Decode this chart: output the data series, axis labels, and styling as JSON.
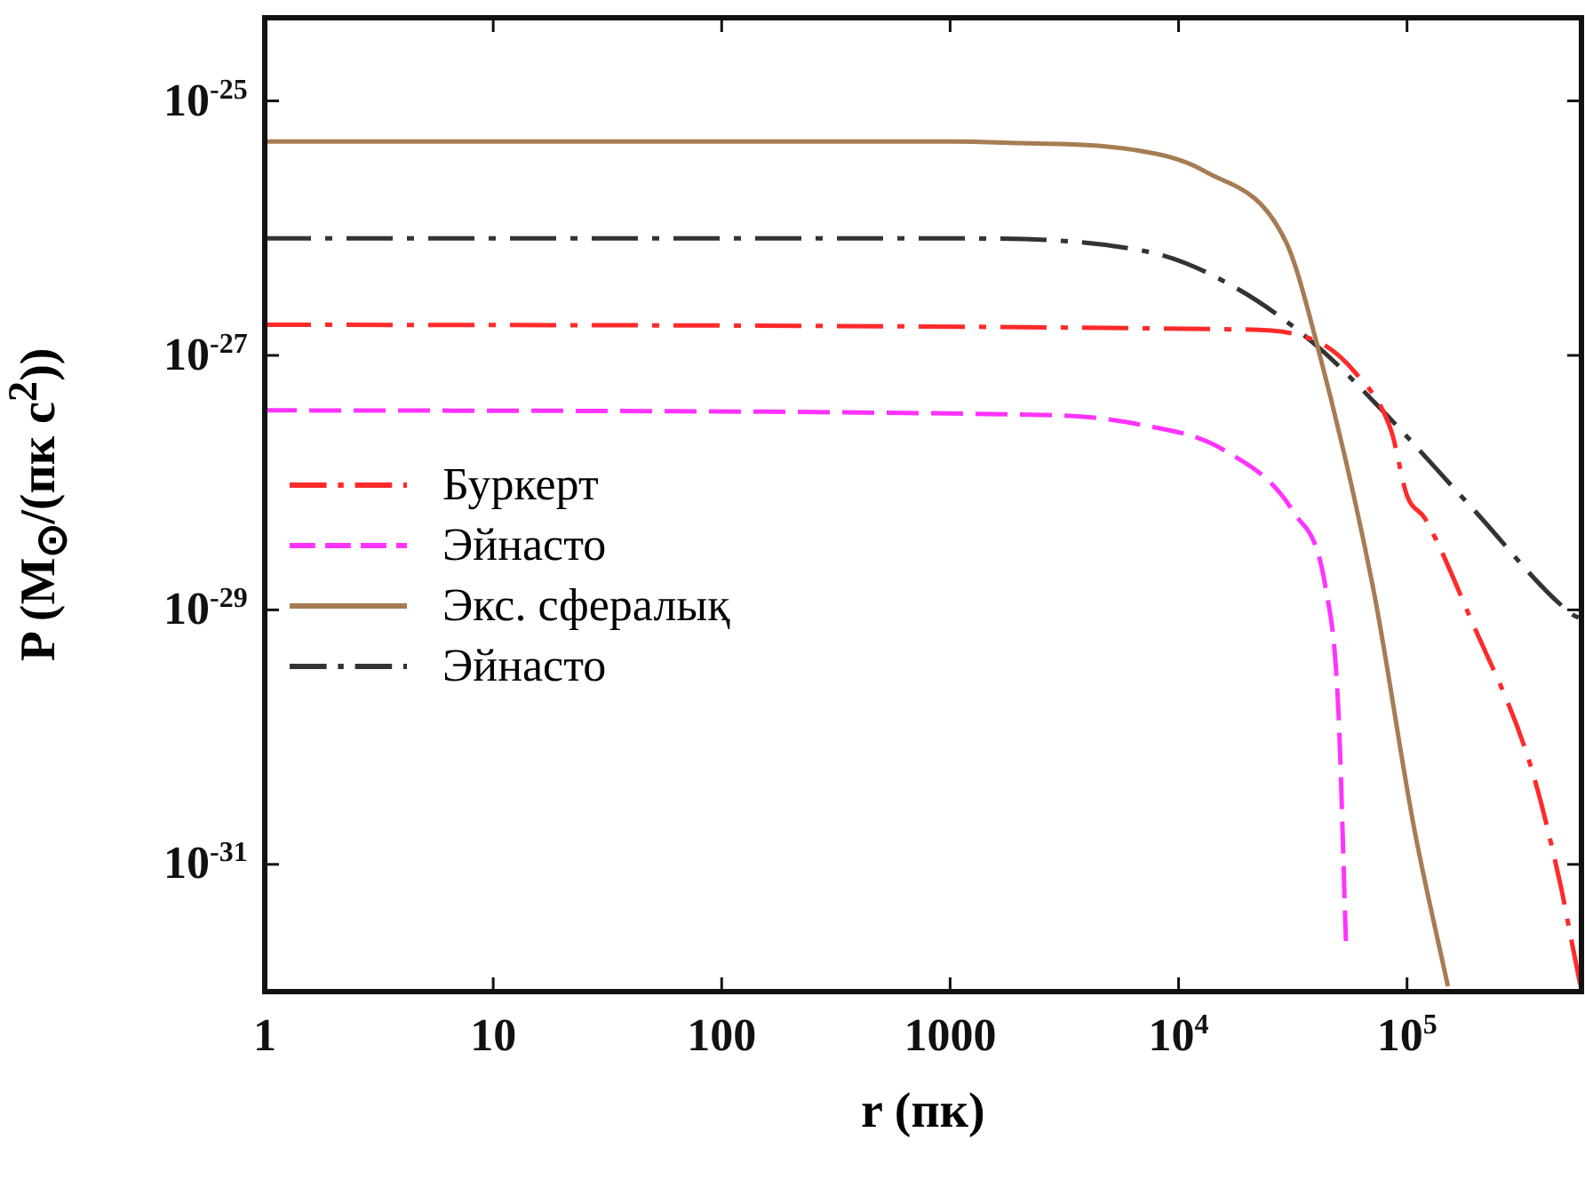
{
  "chart_data": {
    "type": "line",
    "xlabel": "r (пк)",
    "ylabel": "P (M$_{⊙}$/(пк с$^{2}$))",
    "log": "xy",
    "legend": "center left",
    "grid": false,
    "xlim": [
      1,
      580000
    ],
    "ylim": [
      1.1e-32,
      4.5e-25
    ],
    "xticks": [
      1,
      10,
      100,
      1000,
      {
        "value": 10000,
        "label": "10$^{4}$"
      },
      {
        "value": 100000,
        "label": "10$^{5}$"
      }
    ],
    "yticks": [
      {
        "value": 1e-25,
        "label": "10$^{-25}$"
      },
      {
        "value": 1e-27,
        "label": "10$^{-27}$"
      },
      {
        "value": 1e-29,
        "label": "10$^{-29}$"
      },
      {
        "value": 1e-31,
        "label": "10$^{-31}$"
      }
    ],
    "series": [
      {
        "name": "Буркерт",
        "color": "#ff2a2a",
        "line_style": "dashdot",
        "x": [
          1,
          17800,
          40000,
          59000,
          85000,
          100000,
          120000,
          190000,
          347000,
          468000,
          525000,
          575000
        ],
        "values": [
          1.74e-27,
          1.6e-27,
          1.3e-27,
          7.4e-28,
          2.6e-28,
          7.9e-29,
          5.2e-29,
          8.5e-30,
          6e-31,
          7.1e-32,
          2.5e-32,
          1.1e-32
        ]
      },
      {
        "name": "Эйнасто",
        "color": "#ff33ff",
        "line_style": "dashed",
        "x": [
          1,
          2600,
          6500,
          15800,
          32000,
          44000,
          50000,
          54000
        ],
        "values": [
          3.7e-28,
          3.4e-28,
          2.9e-28,
          1.8e-28,
          5.8e-29,
          1.5e-29,
          1.7e-30,
          2.5e-32
        ]
      },
      {
        "name": "Экс. сфералық",
        "color": "#a67c52",
        "line_style": "solid",
        "x": [
          1,
          1000,
          1700,
          6500,
          13000,
          29500,
          40000,
          71000,
          107000,
          151000
        ],
        "values": [
          4.8e-26,
          4.8e-26,
          4.7e-26,
          4.1e-26,
          2.8e-26,
          7.8e-27,
          1.3e-27,
          1.5e-29,
          2e-31,
          1.1e-32
        ]
      },
      {
        "name": "Эйнасто",
        "color": "#333333",
        "line_style": "dashdot",
        "x": [
          1,
          1000,
          7400,
          17800,
          40000,
          79000,
          190000,
          525000,
          580000
        ],
        "values": [
          8.3e-27,
          8.3e-27,
          6.5e-27,
          3.4e-27,
          1.2e-27,
          3.6e-28,
          6.5e-29,
          9.3e-30,
          8.5e-30
        ]
      }
    ]
  }
}
